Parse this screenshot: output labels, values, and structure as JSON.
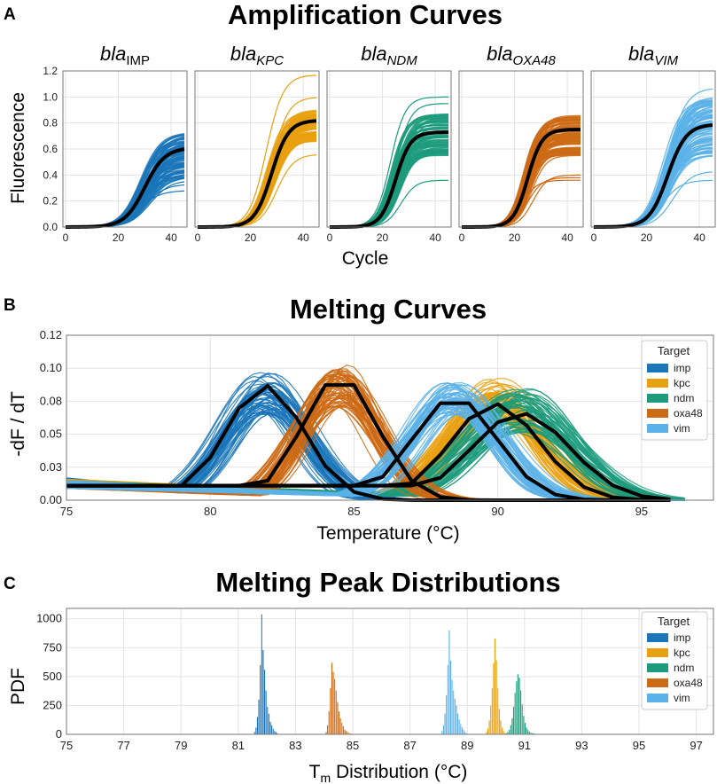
{
  "panel_letters": [
    "A",
    "B",
    "C"
  ],
  "colors": {
    "imp": "#1a76b8",
    "kpc": "#e9a00f",
    "ndm": "#1d9b7c",
    "oxa48": "#cd6a14",
    "vim": "#5bb2e8",
    "mean": "#000000",
    "grid": "#e3e3e3"
  },
  "chart_data": [
    {
      "type": "line",
      "title": "Amplification Curves",
      "xlabel": "Cycle",
      "ylabel": "Fluorescence",
      "xlim": [
        -1,
        46
      ],
      "ylim": [
        0,
        1.2
      ],
      "xticks": [
        "0",
        "20",
        "40"
      ],
      "xtick_values": [
        0,
        20,
        40
      ],
      "yticks": [
        "0.0",
        "0.2",
        "0.4",
        "0.6",
        "0.8",
        "1.0",
        "1.2"
      ],
      "ytick_values": [
        0,
        0.2,
        0.4,
        0.6,
        0.8,
        1.0,
        1.2
      ],
      "panels": [
        {
          "key": "imp",
          "gene_base": "bla",
          "gene_sub": "IMP",
          "sub_italic": false,
          "mean_max": 0.61,
          "midpoint": 30,
          "slope": 3.8,
          "band_low": 0.38,
          "band_high": 0.73,
          "outlier_max": [
            0.28,
            0.33,
            0.36
          ],
          "outlier_low": 0.22,
          "outlier_high": 0.73
        },
        {
          "key": "kpc",
          "gene_base": "bla",
          "gene_sub": "KPC",
          "sub_italic": true,
          "mean_max": 0.82,
          "midpoint": 28,
          "slope": 3.2,
          "band_low": 0.66,
          "band_high": 0.91,
          "outlier_max": [
            1.17,
            1.0,
            0.56
          ],
          "outlier_low": 0.56,
          "outlier_high": 1.17
        },
        {
          "key": "ndm",
          "gene_base": "bla",
          "gene_sub": "NDM",
          "sub_italic": true,
          "mean_max": 0.73,
          "midpoint": 25,
          "slope": 2.8,
          "band_low": 0.55,
          "band_high": 0.88,
          "outlier_max": [
            1.0,
            0.95,
            0.36
          ],
          "outlier_low": 0.33,
          "outlier_high": 1.0
        },
        {
          "key": "oxa48",
          "gene_base": "bla",
          "gene_sub": "OXA48",
          "sub_italic": true,
          "mean_max": 0.75,
          "midpoint": 25,
          "slope": 2.7,
          "band_low": 0.55,
          "band_high": 0.86,
          "outlier_max": [
            0.36,
            0.38,
            0.4
          ],
          "outlier_low": 0.36,
          "outlier_high": 0.86
        },
        {
          "key": "vim",
          "gene_base": "bla",
          "gene_sub": "VIM",
          "sub_italic": true,
          "mean_max": 0.79,
          "midpoint": 28,
          "slope": 3.5,
          "band_low": 0.55,
          "band_high": 1.0,
          "outlier_max": [
            0.36,
            1.07,
            0.43
          ],
          "outlier_low": 0.36,
          "outlier_high": 1.07
        }
      ]
    },
    {
      "type": "line",
      "title": "Melting Curves",
      "xlabel": "Temperature (°C)",
      "ylabel": "-dF / dT",
      "xlim": [
        75,
        97.5
      ],
      "ylim": [
        0,
        0.125
      ],
      "xticks": [
        "75",
        "80",
        "85",
        "90",
        "95"
      ],
      "xtick_values": [
        75,
        80,
        85,
        90,
        95
      ],
      "yticks": [
        "0.00",
        "0.03",
        "0.05",
        "0.08",
        "0.10",
        "0.12"
      ],
      "ytick_values": [
        0,
        0.025,
        0.05,
        0.075,
        0.1,
        0.125
      ],
      "legend_title": "Target",
      "legend_position": "top-right",
      "series": [
        {
          "key": "imp",
          "name": "imp",
          "tm": 81.9,
          "peak": 0.087,
          "spread_tm": 0.35,
          "peak_low": 0.065,
          "peak_high": 0.098,
          "width": 1.35,
          "base_left": 0.014
        },
        {
          "key": "kpc",
          "name": "kpc",
          "tm": 89.9,
          "peak": 0.073,
          "spread_tm": 0.35,
          "peak_low": 0.06,
          "peak_high": 0.093,
          "width": 1.55,
          "base_left": 0.013
        },
        {
          "key": "ndm",
          "name": "ndm",
          "tm": 90.8,
          "peak": 0.066,
          "spread_tm": 0.45,
          "peak_low": 0.05,
          "peak_high": 0.085,
          "width": 1.7,
          "base_left": 0.012
        },
        {
          "key": "oxa48",
          "name": "oxa48",
          "tm": 84.5,
          "peak": 0.094,
          "spread_tm": 0.35,
          "peak_low": 0.07,
          "peak_high": 0.103,
          "width": 1.3,
          "base_left": 0.012
        },
        {
          "key": "vim",
          "name": "vim",
          "tm": 88.5,
          "peak": 0.078,
          "spread_tm": 0.35,
          "peak_low": 0.065,
          "peak_high": 0.09,
          "width": 1.45,
          "base_left": 0.012
        }
      ]
    },
    {
      "type": "bar",
      "title": "Melting Peak Distributions",
      "xlabel_main": "T",
      "xlabel_sub": "m",
      "xlabel_rest": " Distribution (°C)",
      "ylabel": "PDF",
      "xlim": [
        75,
        97.6
      ],
      "ylim": [
        0,
        1090
      ],
      "xticks": [
        "75",
        "77",
        "79",
        "81",
        "83",
        "85",
        "87",
        "89",
        "91",
        "93",
        "95",
        "97"
      ],
      "xtick_values": [
        75,
        77,
        79,
        81,
        83,
        85,
        87,
        89,
        91,
        93,
        95,
        97
      ],
      "yticks": [
        "0",
        "250",
        "500",
        "750",
        "1000"
      ],
      "ytick_values": [
        0,
        250,
        500,
        750,
        1000
      ],
      "bin_width": 0.05,
      "legend_title": "Target",
      "legend_position": "top-right",
      "series": [
        {
          "key": "imp",
          "name": "imp",
          "start": 81.55,
          "values": [
            20,
            60,
            150,
            300,
            600,
            1040,
            730,
            560,
            380,
            240,
            180,
            110,
            80,
            50,
            30,
            20,
            10
          ]
        },
        {
          "key": "kpc",
          "name": "kpc",
          "start": 89.65,
          "values": [
            20,
            50,
            120,
            250,
            400,
            620,
            830,
            640,
            400,
            220,
            120,
            60,
            30,
            15,
            10
          ]
        },
        {
          "key": "ndm",
          "name": "ndm",
          "start": 90.35,
          "values": [
            10,
            20,
            40,
            80,
            140,
            240,
            360,
            460,
            520,
            490,
            380,
            260,
            160,
            100,
            60,
            40,
            25,
            15,
            10,
            10,
            5,
            5
          ]
        },
        {
          "key": "oxa48",
          "name": "oxa48",
          "start": 84.05,
          "values": [
            20,
            80,
            200,
            400,
            620,
            540,
            480,
            380,
            280,
            200,
            140,
            100,
            70,
            40,
            30,
            20,
            10,
            10
          ]
        },
        {
          "key": "vim",
          "name": "vim",
          "start": 88.1,
          "values": [
            30,
            80,
            180,
            340,
            600,
            900,
            640,
            470,
            380,
            310,
            250,
            180,
            130,
            90,
            60,
            40,
            20,
            10
          ]
        }
      ]
    }
  ]
}
